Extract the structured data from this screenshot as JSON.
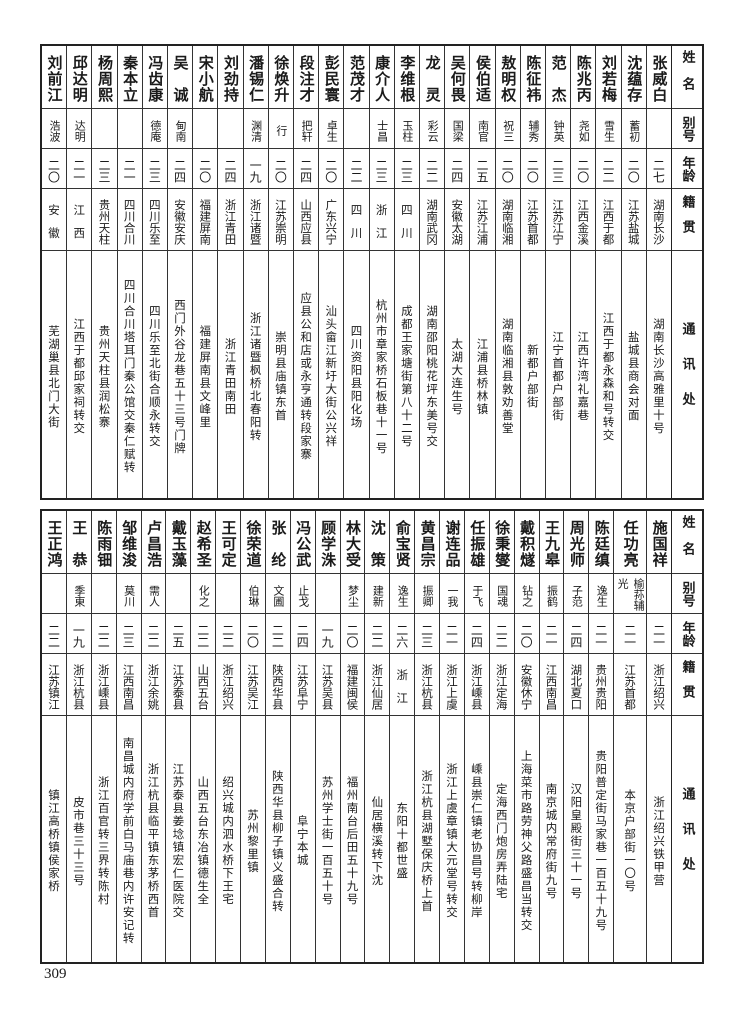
{
  "headers": {
    "name": "姓名",
    "alias": "别号",
    "age": "年龄",
    "native": "籍贯",
    "address": "通讯处"
  },
  "top_table": [
    {
      "name": "张威白",
      "alias": "",
      "age": "二七",
      "native": "湖南长沙",
      "address": "湖南长沙高雅里十号"
    },
    {
      "name": "沈蕴存",
      "alias": "蓄初",
      "age": "二〇",
      "native": "江苏盐城",
      "address": "盐城县商会对面"
    },
    {
      "name": "刘若梅",
      "alias": "雪生",
      "age": "二二",
      "native": "江西于都",
      "address": "江西于都永森和号转交"
    },
    {
      "name": "陈兆丙",
      "alias": "尧如",
      "age": "二〇",
      "native": "江西金溪",
      "address": "江西许湾礼嘉巷"
    },
    {
      "name": "范　杰",
      "alias": "钟英",
      "age": "二三",
      "native": "江苏江宁",
      "address": "江宁首都户部街"
    },
    {
      "name": "陈征祎",
      "alias": "辅秀",
      "age": "二〇",
      "native": "江苏首都",
      "address": "新都户部街"
    },
    {
      "name": "敖明权",
      "alias": "祝三",
      "age": "二〇",
      "native": "湖南临湘",
      "address": "湖南临湘县敦劝善堂"
    },
    {
      "name": "侯伯适",
      "alias": "南官",
      "age": "二五",
      "native": "江苏江浦",
      "address": "江浦县桥林镇"
    },
    {
      "name": "吴何畏",
      "alias": "国梁",
      "age": "二四",
      "native": "安徽太湖",
      "address": "太湖大连生号"
    },
    {
      "name": "龙　灵",
      "alias": "彩云",
      "age": "二二",
      "native": "湖南武冈",
      "address": "湖南邵阳桃花坪东美号交"
    },
    {
      "name": "李维根",
      "alias": "玉柱",
      "age": "二三",
      "native": "四　川",
      "address": "成都王家塘街第八十二号"
    },
    {
      "name": "康介人",
      "alias": "士昌",
      "age": "二三",
      "native": "浙　江",
      "address": "杭州市章家桥石板巷十一号"
    },
    {
      "name": "范茂才",
      "alias": "",
      "age": "二二",
      "native": "四　川",
      "address": "四川资阳县阳化场"
    },
    {
      "name": "彭民寰",
      "alias": "卓生",
      "age": "二〇",
      "native": "广东兴宁",
      "address": "汕头畲江新圩大街公兴祥"
    },
    {
      "name": "段注才",
      "alias": "把轩",
      "age": "二四",
      "native": "山西应县",
      "address": "应县公和店或永亨通转段家寨"
    },
    {
      "name": "徐焕升",
      "alias": "行",
      "age": "二〇",
      "native": "江苏崇明",
      "address": "崇明县庙镇东首"
    },
    {
      "name": "潘锡仁",
      "alias": "渊清",
      "age": "一九",
      "native": "浙江诸暨",
      "address": "浙江诸暨枫桥北春阳转"
    },
    {
      "name": "刘劲持",
      "alias": "",
      "age": "二四",
      "native": "浙江青田",
      "address": "浙江青田南田"
    },
    {
      "name": "宋小航",
      "alias": "",
      "age": "二〇",
      "native": "福建屏南",
      "address": "福建屏南县文峰里"
    },
    {
      "name": "吴　诚",
      "alias": "甸南",
      "age": "二四",
      "native": "安徽安庆",
      "address": "西门外谷龙巷五十三号门牌"
    },
    {
      "name": "冯齿康",
      "alias": "德庵",
      "age": "二三",
      "native": "四川乐至",
      "address": "四川乐至北街合顺永转交"
    },
    {
      "name": "秦本立",
      "alias": "",
      "age": "二一",
      "native": "四川合川",
      "address": "四川合川塔耳门秦公馆交秦仁赋转"
    },
    {
      "name": "杨周熙",
      "alias": "",
      "age": "二三",
      "native": "贵州天柱",
      "address": "贵州天柱县润松寨"
    },
    {
      "name": "邱达明",
      "alias": "达明",
      "age": "二一",
      "native": "江　西",
      "address": "江西于都邱家祠转交"
    },
    {
      "name": "刘前江",
      "alias": "浩波",
      "age": "二〇",
      "native": "安　徽",
      "address": "芜湖巢县北门大街"
    }
  ],
  "bottom_table": [
    {
      "name": "施国祥",
      "alias": "",
      "age": "二一",
      "native": "浙江绍兴",
      "address": "浙江绍兴铁甲营"
    },
    {
      "name": "任功亮",
      "alias": "榆荪辅光",
      "age": "二一",
      "native": "江苏首都",
      "address": "本京户部街一〇号"
    },
    {
      "name": "陈廷缜",
      "alias": "逸生",
      "age": "二一",
      "native": "贵州贵阳",
      "address": "贵阳普定街马家巷一百五十九号"
    },
    {
      "name": "周光师",
      "alias": "子范",
      "age": "二四",
      "native": "湖北夏口",
      "address": "汉阳皇殿街三十一号"
    },
    {
      "name": "王九皋",
      "alias": "振鹤",
      "age": "二一",
      "native": "江西南昌",
      "address": "南京城内常府街九号"
    },
    {
      "name": "戴积燧",
      "alias": "钻之",
      "age": "二〇",
      "native": "安徽休宁",
      "address": "上海菜市路劳神父路盛昌当转交"
    },
    {
      "name": "徐秉燮",
      "alias": "国魂",
      "age": "二二",
      "native": "浙江定海",
      "address": "定海西门炮房弄陆宅"
    },
    {
      "name": "任振雄",
      "alias": "于飞",
      "age": "二四",
      "native": "浙江嵊县",
      "address": "嵊县崇仁镇老协昌号转柳岸"
    },
    {
      "name": "谢连品",
      "alias": "一我",
      "age": "二一",
      "native": "浙江上虞",
      "address": "浙江上虞章镇大元堂号转交"
    },
    {
      "name": "黄昌宗",
      "alias": "振卿",
      "age": "二三",
      "native": "浙江杭县",
      "address": "浙江杭县湖墅保庆桥上首"
    },
    {
      "name": "俞宝贤",
      "alias": "逸生",
      "age": "二六",
      "native": "浙　江",
      "address": "东阳十都世盛"
    },
    {
      "name": "沈　策",
      "alias": "建新",
      "age": "二二",
      "native": "浙江仙居",
      "address": "仙居横溪转下沈"
    },
    {
      "name": "林大受",
      "alias": "梦尘",
      "age": "二〇",
      "native": "福建闽侯",
      "address": "福州南台后田五十九号"
    },
    {
      "name": "顾学洙",
      "alias": "",
      "age": "一九",
      "native": "江苏吴县",
      "address": "苏州学士街一百五十号"
    },
    {
      "name": "冯公武",
      "alias": "止戈",
      "age": "二四",
      "native": "江苏阜宁",
      "address": "阜宁本城"
    },
    {
      "name": "张　纶",
      "alias": "文圃",
      "age": "二二",
      "native": "陕西华县",
      "address": "陕西华县柳子镇义盛合转"
    },
    {
      "name": "徐荣道",
      "alias": "伯琳",
      "age": "二〇",
      "native": "江苏吴江",
      "address": "苏州黎里镇"
    },
    {
      "name": "王可定",
      "alias": "",
      "age": "二二",
      "native": "浙江绍兴",
      "address": "绍兴城内泗水桥下王宅"
    },
    {
      "name": "赵希圣",
      "alias": "化之",
      "age": "二二",
      "native": "山西五台",
      "address": "山西五台东冶镇德生全"
    },
    {
      "name": "戴玉藻",
      "alias": "",
      "age": "二五",
      "native": "江苏泰县",
      "address": "江苏泰县姜埝镇宏仁医院交"
    },
    {
      "name": "卢昌浩",
      "alias": "需人",
      "age": "二二",
      "native": "浙江余姚",
      "address": "浙江杭县临平镇东茅桥西首"
    },
    {
      "name": "邹维浚",
      "alias": "莫川",
      "age": "二三",
      "native": "江西南昌",
      "address": "南昌城内府学前白马庙巷内许安记转"
    },
    {
      "name": "陈雨钿",
      "alias": "",
      "age": "二二",
      "native": "浙江嵊县",
      "address": "浙江百官转三界转陈村"
    },
    {
      "name": "王　恭",
      "alias": "季東",
      "age": "一九",
      "native": "浙江杭县",
      "address": "皮市巷三十三号"
    },
    {
      "name": "王正鸿",
      "alias": "",
      "age": "二二",
      "native": "江苏镇江",
      "address": "镇江高桥镇侯家桥"
    }
  ],
  "page_number": "309"
}
